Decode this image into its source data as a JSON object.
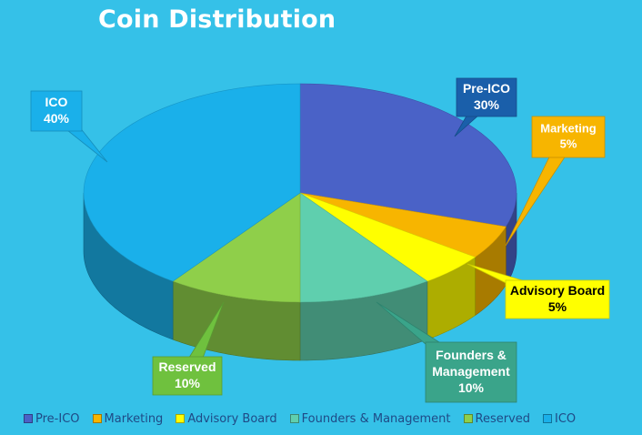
{
  "chart_data": {
    "type": "pie",
    "title": "Coin Distribution",
    "categories": [
      "Pre-ICO",
      "Marketing",
      "Advisory Board",
      "Founders & Management",
      "Reserved",
      "ICO"
    ],
    "values": [
      30,
      5,
      5,
      10,
      10,
      40
    ],
    "labels": [
      {
        "line1": "Pre-ICO",
        "line2": "",
        "pct": "30%"
      },
      {
        "line1": "Marketing",
        "line2": "",
        "pct": "5%"
      },
      {
        "line1": "Advisory Board",
        "line2": "",
        "pct": "5%"
      },
      {
        "line1": "Founders &",
        "line2": "Management",
        "pct": "10%"
      },
      {
        "line1": "Reserved",
        "line2": "",
        "pct": "10%"
      },
      {
        "line1": "ICO",
        "line2": "",
        "pct": "40%"
      }
    ],
    "colors": [
      "#4a62c7",
      "#f7b500",
      "#ffff00",
      "#5fcfae",
      "#8fcf4a",
      "#1ab0ea"
    ],
    "callout_colors": [
      "#1a5faa",
      "#f7b500",
      "#ffff00",
      "#3aa48a",
      "#6fc13e",
      "#1ab0ea"
    ],
    "callout_text_colors": [
      "#ffffff",
      "#ffffff",
      "#000000",
      "#ffffff",
      "#ffffff",
      "#ffffff"
    ],
    "legend_position": "bottom",
    "style": "3d-pie"
  }
}
